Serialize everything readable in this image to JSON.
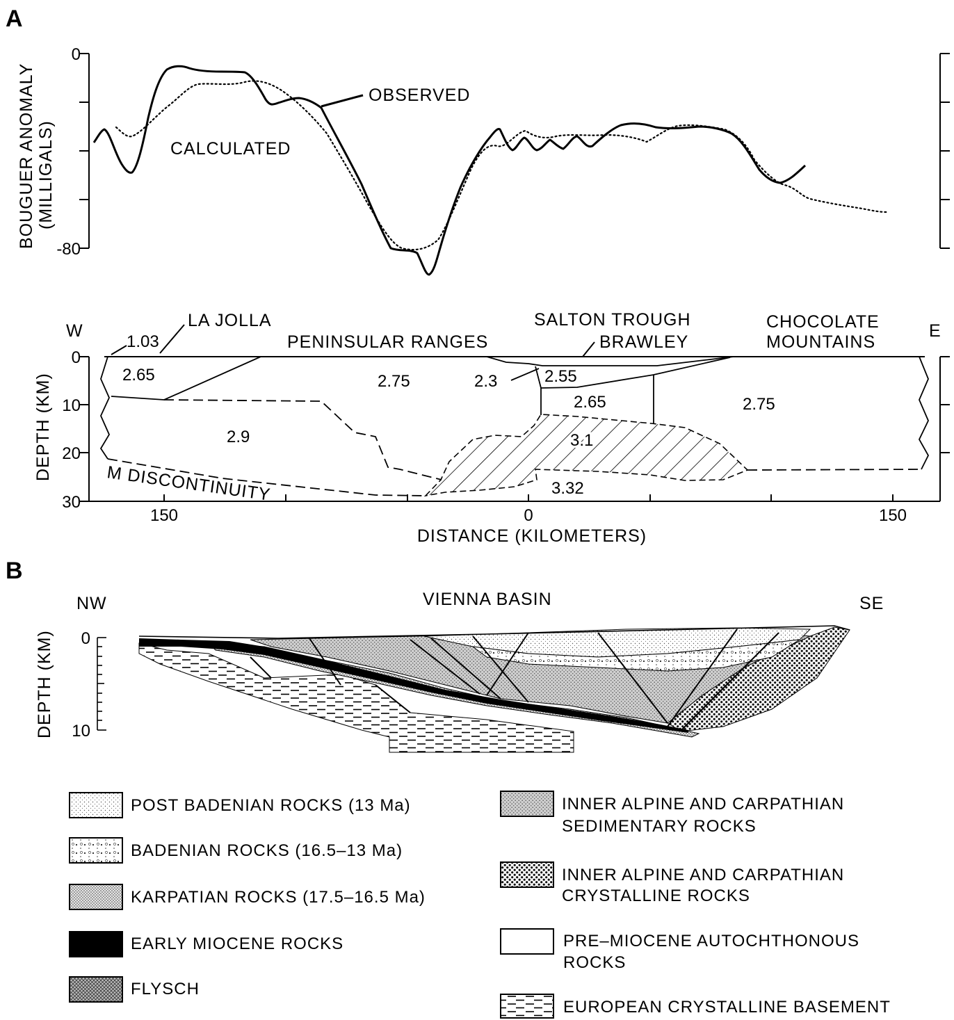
{
  "panel_a": {
    "label": "A",
    "gravity": {
      "ylabel_line1": "BOUGUER ANOMALY",
      "ylabel_line2": "(MILLIGALS)",
      "tick_top": "0",
      "tick_bottom": "-80",
      "observed_label": "OBSERVED",
      "calculated_label": "CALCULATED"
    },
    "section": {
      "west": "W",
      "east": "E",
      "ylabel": "DEPTH (KM)",
      "depth_ticks": [
        "0",
        "10",
        "20",
        "30"
      ],
      "xlabel": "DISTANCE (KILOMETERS)",
      "distance_ticks": [
        "150",
        "0",
        "150"
      ],
      "places": {
        "la_jolla": "LA JOLLA",
        "peninsular": "PENINSULAR RANGES",
        "salton": "SALTON TROUGH",
        "brawley": "BRAWLEY",
        "choc1": "CHOCOLATE",
        "choc2": "MOUNTAINS"
      },
      "moho": "M DISCONTINUITY",
      "densities": {
        "d103": "1.03",
        "d265a": "2.65",
        "d275a": "2.75",
        "d23": "2.3",
        "d255": "2.55",
        "d265b": "2.65",
        "d275b": "2.75",
        "d29": "2.9",
        "d31": "3.1",
        "d332": "3.32"
      }
    }
  },
  "panel_b": {
    "label": "B",
    "title": "VIENNA BASIN",
    "nw": "NW",
    "se": "SE",
    "ylabel": "DEPTH (KM)",
    "tick_top": "0",
    "tick_bottom": "10"
  },
  "legend": {
    "left": [
      {
        "label": "POST BADENIAN ROCKS (13 Ma)",
        "pattern": "fine-stipple"
      },
      {
        "label": "BADENIAN ROCKS (16.5–13 Ma)",
        "pattern": "coarse-dots"
      },
      {
        "label": "KARPATIAN ROCKS (17.5–16.5 Ma)",
        "pattern": "dense-stipple"
      },
      {
        "label": "EARLY MIOCENE ROCKS",
        "pattern": "solid-black"
      },
      {
        "label": "FLYSCH",
        "pattern": "cross-hatch"
      }
    ],
    "right": [
      {
        "line1": "INNER ALPINE AND CARPATHIAN",
        "line2": "SEDIMENTARY ROCKS",
        "pattern": "gray-stipple"
      },
      {
        "line1": "INNER ALPINE AND CARPATHIAN",
        "line2": "CRYSTALLINE ROCKS",
        "pattern": "heavy-dots"
      },
      {
        "line1": "PRE–MIOCENE AUTOCHTHONOUS",
        "line2": "ROCKS",
        "pattern": "blank"
      },
      {
        "line1": "EUROPEAN CRYSTALLINE BASEMENT",
        "line2": "",
        "pattern": "dashes"
      }
    ]
  }
}
